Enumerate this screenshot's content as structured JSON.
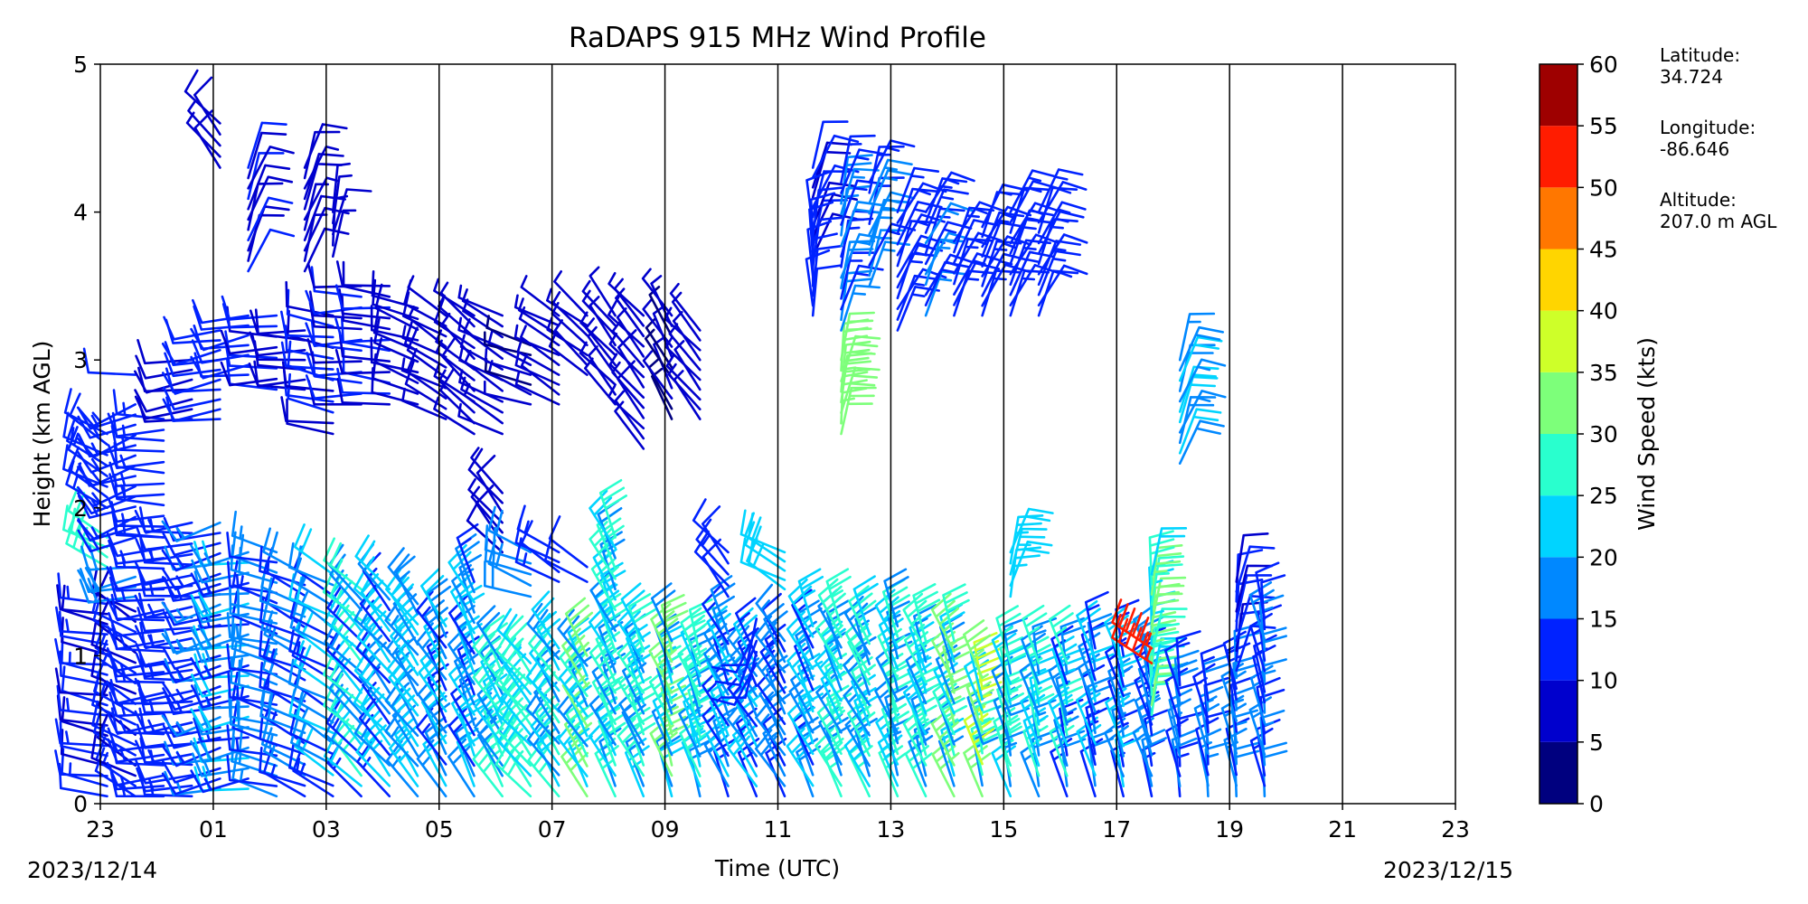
{
  "chart_data": {
    "type": "wind_barb_profile",
    "title": "RaDAPS 915 MHz Wind Profile",
    "xlabel": "Time (UTC)",
    "ylabel": "Height (km AGL)",
    "x_tick_labels": [
      "23",
      "01",
      "03",
      "05",
      "07",
      "09",
      "11",
      "13",
      "15",
      "17",
      "19",
      "21",
      "23"
    ],
    "x_range_hours": [
      0,
      24
    ],
    "y_ticks": [
      0,
      1,
      2,
      3,
      4,
      5
    ],
    "ylim": [
      0,
      5
    ],
    "start_date_label": "2023/12/14",
    "end_date_label": "2023/12/15",
    "colorbar": {
      "label": "Wind Speed (kts)",
      "ticks": [
        0,
        5,
        10,
        15,
        20,
        25,
        30,
        35,
        40,
        45,
        50,
        55,
        60
      ],
      "colors": [
        "#00007f",
        "#0000cd",
        "#0022ff",
        "#0088ff",
        "#00d4ff",
        "#29ffce",
        "#7dff7a",
        "#ceff29",
        "#ffd500",
        "#ff7700",
        "#ff1c00",
        "#9e0000"
      ]
    },
    "site": {
      "latitude_label": "Latitude:",
      "latitude": "34.724",
      "longitude_label": "Longitude:",
      "longitude": "-86.646",
      "altitude_label": "Altitude:",
      "altitude": "207.0 m AGL"
    },
    "columns": [
      {
        "t": 0.0,
        "layers": [
          {
            "h0": 0.05,
            "h1": 1.35,
            "spd": [
              9,
              13
            ],
            "dir": 280
          },
          {
            "h0": 1.6,
            "h1": 1.8,
            "spd": [
              25,
              27
            ],
            "dir": 300
          },
          {
            "h0": 2.0,
            "h1": 2.5,
            "spd": [
              12,
              14
            ],
            "dir": 300
          }
        ]
      },
      {
        "t": 0.5,
        "layers": [
          {
            "h0": 0.05,
            "h1": 1.3,
            "spd": [
              8,
              13
            ],
            "dir": 300
          },
          {
            "h0": 1.4,
            "h1": 1.6,
            "spd": [
              18,
              20
            ],
            "dir": 260
          },
          {
            "h0": 1.8,
            "h1": 2.7,
            "spd": [
              12,
              15
            ],
            "dir": 250
          },
          {
            "h0": 2.9,
            "h1": 2.9,
            "spd": [
              12,
              12
            ],
            "dir": 270
          }
        ]
      },
      {
        "t": 1.0,
        "layers": [
          {
            "h0": 0.05,
            "h1": 1.8,
            "spd": [
              10,
              14
            ],
            "dir": 265
          },
          {
            "h0": 1.8,
            "h1": 2.6,
            "spd": [
              12,
              15
            ],
            "dir": 270
          }
        ]
      },
      {
        "t": 1.5,
        "layers": [
          {
            "h0": 0.05,
            "h1": 1.9,
            "spd": [
              11,
              15
            ],
            "dir": 265
          },
          {
            "h0": 2.6,
            "h1": 3.0,
            "spd": [
              8,
              10
            ],
            "dir": 260
          }
        ]
      },
      {
        "t": 2.0,
        "layers": [
          {
            "h0": 0.1,
            "h1": 1.9,
            "spd": [
              11,
              16
            ],
            "dir": 255
          },
          {
            "h0": 2.6,
            "h1": 3.2,
            "spd": [
              10,
              12
            ],
            "dir": 260
          },
          {
            "h0": 4.3,
            "h1": 4.6,
            "spd": [
              7,
              8
            ],
            "dir": 320
          }
        ]
      },
      {
        "t": 2.5,
        "layers": [
          {
            "h0": 0.1,
            "h1": 1.7,
            "spd": [
              14,
              22
            ],
            "dir": 260
          },
          {
            "h0": 2.9,
            "h1": 3.3,
            "spd": [
              10,
              12
            ],
            "dir": 260
          },
          {
            "h0": 3.6,
            "h1": 4.3,
            "spd": [
              8,
              11
            ],
            "dir": 20
          }
        ]
      },
      {
        "t": 3.0,
        "layers": [
          {
            "h0": 0.05,
            "h1": 1.7,
            "spd": [
              12,
              20
            ],
            "dir": 285
          },
          {
            "h0": 2.8,
            "h1": 3.3,
            "spd": [
              9,
              11
            ],
            "dir": 270
          }
        ]
      },
      {
        "t": 3.5,
        "layers": [
          {
            "h0": 0.05,
            "h1": 1.55,
            "spd": [
              11,
              18
            ],
            "dir": 295
          },
          {
            "h0": 2.8,
            "h1": 3.2,
            "spd": [
              8,
              10
            ],
            "dir": 270
          },
          {
            "h0": 3.6,
            "h1": 4.3,
            "spd": [
              7,
              9
            ],
            "dir": 20
          }
        ]
      },
      {
        "t": 4.0,
        "layers": [
          {
            "h0": 0.05,
            "h1": 1.55,
            "spd": [
              12,
              22
            ],
            "dir": 300
          },
          {
            "h0": 2.5,
            "h1": 3.3,
            "spd": [
              9,
              12
            ],
            "dir": 280
          },
          {
            "h0": 3.7,
            "h1": 4.0,
            "spd": [
              6,
              8
            ],
            "dir": 10
          }
        ]
      },
      {
        "t": 4.5,
        "layers": [
          {
            "h0": 0.05,
            "h1": 1.45,
            "spd": [
              14,
              28
            ],
            "dir": 315
          },
          {
            "h0": 2.7,
            "h1": 3.5,
            "spd": [
              9,
              12
            ],
            "dir": 270
          }
        ]
      },
      {
        "t": 5.0,
        "layers": [
          {
            "h0": 0.05,
            "h1": 1.45,
            "spd": [
              13,
              25
            ],
            "dir": 320
          },
          {
            "h0": 2.7,
            "h1": 3.5,
            "spd": [
              8,
              11
            ],
            "dir": 275
          }
        ]
      },
      {
        "t": 5.5,
        "layers": [
          {
            "h0": 0.05,
            "h1": 1.35,
            "spd": [
              15,
              24
            ],
            "dir": 325
          },
          {
            "h0": 2.7,
            "h1": 3.35,
            "spd": [
              8,
              10
            ],
            "dir": 290
          }
        ]
      },
      {
        "t": 6.0,
        "layers": [
          {
            "h0": 0.05,
            "h1": 1.2,
            "spd": [
              13,
              22
            ],
            "dir": 330
          },
          {
            "h0": 2.6,
            "h1": 3.3,
            "spd": [
              6,
              9
            ],
            "dir": 300
          }
        ]
      },
      {
        "t": 6.5,
        "layers": [
          {
            "h0": 0.05,
            "h1": 1.5,
            "spd": [
              14,
              22
            ],
            "dir": 335
          },
          {
            "h0": 2.5,
            "h1": 3.3,
            "spd": [
              5,
              8
            ],
            "dir": 310
          }
        ]
      },
      {
        "t": 7.0,
        "layers": [
          {
            "h0": 0.05,
            "h1": 0.95,
            "spd": [
              16,
              28
            ],
            "dir": 330
          },
          {
            "h0": 1.7,
            "h1": 2.1,
            "spd": [
              7,
              8
            ],
            "dir": 320
          },
          {
            "h0": 2.5,
            "h1": 3.3,
            "spd": [
              5,
              7
            ],
            "dir": 300
          }
        ]
      },
      {
        "t": 7.5,
        "layers": [
          {
            "h0": 0.05,
            "h1": 0.95,
            "spd": [
              20,
              30
            ],
            "dir": 320
          },
          {
            "h0": 1.4,
            "h1": 1.7,
            "spd": [
              16,
              20
            ],
            "dir": 290
          },
          {
            "h0": 2.7,
            "h1": 3.1,
            "spd": [
              4,
              6
            ],
            "dir": 290
          }
        ]
      },
      {
        "t": 8.0,
        "layers": [
          {
            "h0": 0.05,
            "h1": 1.05,
            "spd": [
              18,
              26
            ],
            "dir": 325
          },
          {
            "h0": 1.5,
            "h1": 1.7,
            "spd": [
              10,
              14
            ],
            "dir": 300
          },
          {
            "h0": 2.7,
            "h1": 3.3,
            "spd": [
              5,
              7
            ],
            "dir": 300
          }
        ]
      },
      {
        "t": 8.5,
        "layers": [
          {
            "h0": 0.05,
            "h1": 1.0,
            "spd": [
              18,
              32
            ],
            "dir": 330
          },
          {
            "h0": 1.5,
            "h1": 1.6,
            "spd": [
              10,
              12
            ],
            "dir": 300
          },
          {
            "h0": 2.9,
            "h1": 3.3,
            "spd": [
              5,
              7
            ],
            "dir": 310
          }
        ]
      },
      {
        "t": 9.0,
        "layers": [
          {
            "h0": 0.05,
            "h1": 1.8,
            "spd": [
              17,
              30
            ],
            "dir": 335
          },
          {
            "h0": 2.7,
            "h1": 3.3,
            "spd": [
              5,
              7
            ],
            "dir": 320
          }
        ]
      },
      {
        "t": 9.5,
        "layers": [
          {
            "h0": 0.05,
            "h1": 1.1,
            "spd": [
              17,
              30
            ],
            "dir": 335
          },
          {
            "h0": 2.4,
            "h1": 3.3,
            "spd": [
              5,
              8
            ],
            "dir": 320
          }
        ]
      },
      {
        "t": 10.0,
        "layers": [
          {
            "h0": 0.05,
            "h1": 1.1,
            "spd": [
              18,
              34
            ],
            "dir": 340
          },
          {
            "h0": 2.6,
            "h1": 3.3,
            "spd": [
              4,
              7
            ],
            "dir": 330
          }
        ]
      },
      {
        "t": 10.5,
        "layers": [
          {
            "h0": 0.05,
            "h1": 1.0,
            "spd": [
              18,
              30
            ],
            "dir": 340
          },
          {
            "h0": 2.6,
            "h1": 3.2,
            "spd": [
              5,
              7
            ],
            "dir": 320
          }
        ]
      },
      {
        "t": 11.0,
        "layers": [
          {
            "h0": 0.05,
            "h1": 1.15,
            "spd": [
              14,
              22
            ],
            "dir": 335
          },
          {
            "h0": 1.4,
            "h1": 1.7,
            "spd": [
              11,
              13
            ],
            "dir": 320
          }
        ]
      },
      {
        "t": 11.5,
        "layers": [
          {
            "h0": 0.05,
            "h1": 1.0,
            "spd": [
              13,
              22
            ],
            "dir": 330
          },
          {
            "h0": 0.95,
            "h1": 1.25,
            "spd": [
              10,
              12
            ],
            "dir": 200
          }
        ]
      },
      {
        "t": 12.0,
        "layers": [
          {
            "h0": 0.05,
            "h1": 1.1,
            "spd": [
              12,
              20
            ],
            "dir": 330
          },
          {
            "h0": 1.45,
            "h1": 1.7,
            "spd": [
              20,
              22
            ],
            "dir": 300
          }
        ]
      },
      {
        "t": 12.5,
        "layers": [
          {
            "h0": 0.05,
            "h1": 1.2,
            "spd": [
              14,
              24
            ],
            "dir": 335
          },
          {
            "h0": 3.7,
            "h1": 4.3,
            "spd": [
              9,
              11
            ],
            "dir": 20
          },
          {
            "h0": 3.3,
            "h1": 3.9,
            "spd": [
              10,
              12
            ],
            "dir": 0
          }
        ]
      },
      {
        "t": 13.0,
        "layers": [
          {
            "h0": 0.05,
            "h1": 1.2,
            "spd": [
              16,
              30
            ],
            "dir": 335
          },
          {
            "h0": 2.5,
            "h1": 3.0,
            "spd": [
              30,
              33
            ],
            "dir": 10
          },
          {
            "h0": 3.2,
            "h1": 4.2,
            "spd": [
              13,
              18
            ],
            "dir": 15
          }
        ]
      },
      {
        "t": 13.5,
        "layers": [
          {
            "h0": 0.05,
            "h1": 1.15,
            "spd": [
              15,
              28
            ],
            "dir": 335
          },
          {
            "h0": 3.5,
            "h1": 4.2,
            "spd": [
              14,
              17
            ],
            "dir": 20
          }
        ]
      },
      {
        "t": 14.0,
        "layers": [
          {
            "h0": 0.05,
            "h1": 1.2,
            "spd": [
              15,
              30
            ],
            "dir": 340
          },
          {
            "h0": 3.2,
            "h1": 4.0,
            "spd": [
              12,
              15
            ],
            "dir": 25
          }
        ]
      },
      {
        "t": 14.5,
        "layers": [
          {
            "h0": 0.05,
            "h1": 1.1,
            "spd": [
              16,
              30
            ],
            "dir": 340
          },
          {
            "h0": 3.3,
            "h1": 4.0,
            "spd": [
              13,
              16
            ],
            "dir": 25
          }
        ]
      },
      {
        "t": 15.0,
        "layers": [
          {
            "h0": 0.05,
            "h1": 1.1,
            "spd": [
              17,
              34
            ],
            "dir": 340
          },
          {
            "h0": 3.3,
            "h1": 3.8,
            "spd": [
              12,
              15
            ],
            "dir": 25
          }
        ]
      },
      {
        "t": 15.5,
        "layers": [
          {
            "h0": 0.05,
            "h1": 0.85,
            "spd": [
              18,
              40
            ],
            "dir": 345
          },
          {
            "h0": 3.3,
            "h1": 3.9,
            "spd": [
              12,
              15
            ],
            "dir": 25
          }
        ]
      },
      {
        "t": 16.0,
        "layers": [
          {
            "h0": 0.05,
            "h1": 0.95,
            "spd": [
              16,
              30
            ],
            "dir": 345
          },
          {
            "h0": 1.4,
            "h1": 1.7,
            "spd": [
              22,
              24
            ],
            "dir": 15
          },
          {
            "h0": 3.3,
            "h1": 4.0,
            "spd": [
              12,
              15
            ],
            "dir": 25
          }
        ]
      },
      {
        "t": 16.5,
        "layers": [
          {
            "h0": 0.05,
            "h1": 0.95,
            "spd": [
              15,
              28
            ],
            "dir": 345
          },
          {
            "h0": 3.3,
            "h1": 4.0,
            "spd": [
              12,
              15
            ],
            "dir": 25
          }
        ]
      },
      {
        "t": 17.0,
        "layers": [
          {
            "h0": 0.05,
            "h1": 0.95,
            "spd": [
              14,
              26
            ],
            "dir": 345
          }
        ]
      },
      {
        "t": 17.5,
        "layers": [
          {
            "h0": 0.05,
            "h1": 1.05,
            "spd": [
              12,
              22
            ],
            "dir": 345
          }
        ]
      },
      {
        "t": 18.0,
        "layers": [
          {
            "h0": 0.05,
            "h1": 1.0,
            "spd": [
              12,
              22
            ],
            "dir": 345
          }
        ]
      },
      {
        "t": 18.5,
        "layers": [
          {
            "h0": 0.05,
            "h1": 0.95,
            "spd": [
              12,
              20
            ],
            "dir": 345
          },
          {
            "h0": 0.6,
            "h1": 1.55,
            "spd": [
              22,
              34
            ],
            "dir": 5
          },
          {
            "h0": 0.95,
            "h1": 1.05,
            "spd": [
              53,
              55
            ],
            "dir": 300
          }
        ]
      },
      {
        "t": 19.0,
        "layers": [
          {
            "h0": 0.05,
            "h1": 0.8,
            "spd": [
              10,
              18
            ],
            "dir": 350
          },
          {
            "h0": 2.3,
            "h1": 3.0,
            "spd": [
              16,
              22
            ],
            "dir": 20
          }
        ]
      },
      {
        "t": 19.5,
        "layers": [
          {
            "h0": 0.05,
            "h1": 0.7,
            "spd": [
              10,
              18
            ],
            "dir": 350
          }
        ]
      },
      {
        "t": 20.0,
        "layers": [
          {
            "h0": 0.05,
            "h1": 0.85,
            "spd": [
              12,
              20
            ],
            "dir": 350
          },
          {
            "h0": 0.9,
            "h1": 1.5,
            "spd": [
              9,
              12
            ],
            "dir": 10
          }
        ]
      },
      {
        "t": 20.5,
        "layers": [
          {
            "h0": 0.05,
            "h1": 1.25,
            "spd": [
              10,
              18
            ],
            "dir": 350
          }
        ]
      }
    ]
  }
}
